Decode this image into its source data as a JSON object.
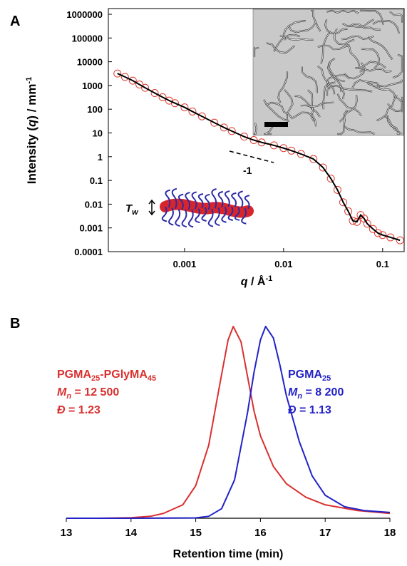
{
  "chart_data": [
    {
      "type": "scatter",
      "panel_label": "A",
      "x_label_parts": [
        "q",
        " / Å",
        "-1"
      ],
      "y_label_parts": [
        "Intensity (",
        "q",
        ") / mm",
        "-1"
      ],
      "xscale": "log",
      "yscale": "log",
      "xlim": [
        0.00017,
        0.165
      ],
      "ylim": [
        0.0001,
        1000000
      ],
      "xticks": [
        0.001,
        0.01,
        0.1
      ],
      "yticks": [
        0.0001,
        0.001,
        0.01,
        0.1,
        1,
        10,
        100,
        1000,
        10000,
        100000,
        1000000
      ],
      "x": [
        0.00021,
        0.00025,
        0.0003,
        0.00035,
        0.0004,
        0.0005,
        0.0006,
        0.0007,
        0.0008,
        0.001,
        0.0012,
        0.0015,
        0.002,
        0.0025,
        0.003,
        0.004,
        0.005,
        0.006,
        0.008,
        0.01,
        0.012,
        0.015,
        0.02,
        0.025,
        0.03,
        0.035,
        0.04,
        0.045,
        0.05,
        0.055,
        0.06,
        0.065,
        0.07,
        0.08,
        0.09,
        0.1,
        0.12,
        0.15
      ],
      "series": [
        {
          "color": "#e03c31",
          "marker": "circle",
          "values": [
            3200,
            2300,
            1600,
            1100,
            800,
            480,
            320,
            230,
            180,
            120,
            80,
            50,
            27,
            17,
            12,
            7,
            5,
            4,
            3,
            2.3,
            1.8,
            1.3,
            0.8,
            0.35,
            0.12,
            0.04,
            0.012,
            0.005,
            0.002,
            0.0018,
            0.0035,
            0.0025,
            0.0015,
            0.0009,
            0.0006,
            0.0005,
            0.0004,
            0.0003
          ]
        },
        {
          "color": "#000000",
          "marker": "line",
          "values": [
            3200,
            2300,
            1600,
            1100,
            800,
            480,
            320,
            230,
            180,
            120,
            80,
            50,
            27,
            17,
            12,
            7,
            5,
            4,
            3,
            2.3,
            1.8,
            1.3,
            0.8,
            0.35,
            0.12,
            0.04,
            0.012,
            0.005,
            0.002,
            0.0018,
            0.0035,
            0.0025,
            0.0015,
            0.0009,
            0.0006,
            0.0005,
            0.0004,
            0.0003
          ]
        }
      ],
      "annotations": {
        "slope": "-1",
        "tw_parts": [
          "T",
          "w"
        ]
      }
    },
    {
      "type": "line",
      "panel_label": "B",
      "x_label": "Retention time (min)",
      "xlim": [
        13,
        18
      ],
      "ylim": [
        0,
        1
      ],
      "xticks": [
        13,
        14,
        15,
        16,
        17,
        18
      ],
      "series": [
        {
          "color": "#d9302f",
          "x": [
            13,
            13.5,
            14,
            14.3,
            14.5,
            14.8,
            15,
            15.2,
            15.4,
            15.5,
            15.58,
            15.7,
            15.8,
            15.9,
            16,
            16.2,
            16.4,
            16.7,
            17,
            17.5,
            18
          ],
          "values": [
            0,
            0,
            0.003,
            0.01,
            0.025,
            0.07,
            0.17,
            0.38,
            0.75,
            0.93,
            1,
            0.92,
            0.74,
            0.56,
            0.43,
            0.27,
            0.18,
            0.11,
            0.07,
            0.04,
            0.025
          ],
          "label_lines": [
            [
              "PGMA",
              "25",
              "-PGlyMA",
              "45"
            ],
            [
              "M",
              "n",
              " = 12 500"
            ],
            [
              "Đ",
              " = 1.23"
            ]
          ]
        },
        {
          "color": "#2222c8",
          "x": [
            13,
            14,
            15,
            15.2,
            15.4,
            15.6,
            15.8,
            15.9,
            16,
            16.08,
            16.2,
            16.3,
            16.4,
            16.6,
            16.8,
            17,
            17.3,
            17.6,
            18
          ],
          "values": [
            0,
            0,
            0.002,
            0.01,
            0.05,
            0.2,
            0.55,
            0.76,
            0.93,
            1,
            0.94,
            0.8,
            0.64,
            0.4,
            0.22,
            0.12,
            0.06,
            0.04,
            0.03
          ],
          "label_lines": [
            [
              "PGMA",
              "25"
            ],
            [
              "M",
              "n",
              " = 8 200"
            ],
            [
              "Đ",
              " = 1.13"
            ]
          ]
        }
      ]
    }
  ]
}
